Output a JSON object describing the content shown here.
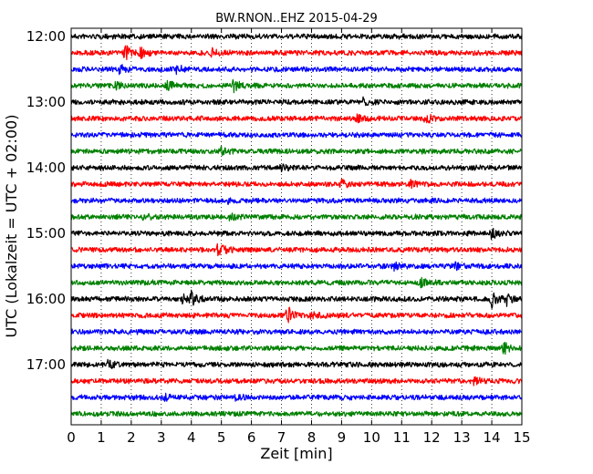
{
  "chart_data": {
    "type": "line",
    "title": "BW.RNON..EHZ 2015-04-29",
    "xlabel": "Zeit  [min]",
    "ylabel": "UTC (Lokalzeit = UTC + 02:00)",
    "xlim": [
      0,
      15
    ],
    "x_ticks": [
      "0",
      "1",
      "2",
      "3",
      "4",
      "5",
      "6",
      "7",
      "8",
      "9",
      "10",
      "11",
      "12",
      "13",
      "14",
      "15"
    ],
    "y_ticks": [
      "12:00",
      "13:00",
      "14:00",
      "15:00",
      "16:00",
      "17:00"
    ],
    "grid": {
      "x": "dotted",
      "y": "off"
    },
    "trace_colors": [
      "#000000",
      "#ff0000",
      "#0000ff",
      "#008000"
    ],
    "traces": [
      {
        "start": "12:00",
        "color": "#000000",
        "events": []
      },
      {
        "start": "12:15",
        "color": "#ff0000",
        "events": [
          {
            "t": 1.8,
            "amp": 0.55
          },
          {
            "t": 2.3,
            "amp": 0.35
          },
          {
            "t": 4.7,
            "amp": 0.3
          }
        ]
      },
      {
        "start": "12:30",
        "color": "#0000ff",
        "events": [
          {
            "t": 1.6,
            "amp": 0.3
          },
          {
            "t": 3.5,
            "amp": 0.3
          }
        ]
      },
      {
        "start": "12:45",
        "color": "#008000",
        "events": [
          {
            "t": 3.2,
            "amp": 0.5
          },
          {
            "t": 5.4,
            "amp": 0.45
          },
          {
            "t": 1.5,
            "amp": 0.25
          }
        ]
      },
      {
        "start": "13:00",
        "color": "#000000",
        "events": [
          {
            "t": 9.7,
            "amp": 0.3
          }
        ]
      },
      {
        "start": "13:15",
        "color": "#ff0000",
        "events": [
          {
            "t": 11.8,
            "amp": 0.35
          },
          {
            "t": 9.5,
            "amp": 0.25
          }
        ]
      },
      {
        "start": "13:30",
        "color": "#0000ff",
        "events": []
      },
      {
        "start": "13:45",
        "color": "#008000",
        "events": [
          {
            "t": 5.0,
            "amp": 0.25
          }
        ]
      },
      {
        "start": "14:00",
        "color": "#000000",
        "events": [
          {
            "t": 7.0,
            "amp": 0.2
          }
        ]
      },
      {
        "start": "14:15",
        "color": "#ff0000",
        "events": [
          {
            "t": 9.0,
            "amp": 0.3
          },
          {
            "t": 11.3,
            "amp": 0.25
          }
        ]
      },
      {
        "start": "14:30",
        "color": "#0000ff",
        "events": [
          {
            "t": 5.2,
            "amp": 0.2
          }
        ]
      },
      {
        "start": "14:45",
        "color": "#008000",
        "events": [
          {
            "t": 2.4,
            "amp": 0.25
          },
          {
            "t": 5.3,
            "amp": 0.25
          }
        ]
      },
      {
        "start": "15:00",
        "color": "#000000",
        "events": [
          {
            "t": 14.0,
            "amp": 0.35
          }
        ]
      },
      {
        "start": "15:15",
        "color": "#ff0000",
        "events": [
          {
            "t": 4.9,
            "amp": 0.5
          }
        ]
      },
      {
        "start": "15:30",
        "color": "#0000ff",
        "events": [
          {
            "t": 10.7,
            "amp": 0.25
          },
          {
            "t": 12.8,
            "amp": 0.2
          }
        ]
      },
      {
        "start": "15:45",
        "color": "#008000",
        "events": [
          {
            "t": 11.6,
            "amp": 0.35
          }
        ]
      },
      {
        "start": "16:00",
        "color": "#000000",
        "events": [
          {
            "t": 4.0,
            "amp": 0.5
          },
          {
            "t": 14.0,
            "amp": 0.6
          },
          {
            "t": 14.5,
            "amp": 0.4
          },
          {
            "t": 3.7,
            "amp": 0.3
          }
        ]
      },
      {
        "start": "16:15",
        "color": "#ff0000",
        "events": [
          {
            "t": 7.2,
            "amp": 0.7
          },
          {
            "t": 8.0,
            "amp": 0.3
          }
        ]
      },
      {
        "start": "16:30",
        "color": "#0000ff",
        "events": []
      },
      {
        "start": "16:45",
        "color": "#008000",
        "events": [
          {
            "t": 14.4,
            "amp": 0.4
          }
        ]
      },
      {
        "start": "17:00",
        "color": "#000000",
        "events": [
          {
            "t": 1.2,
            "amp": 0.3
          }
        ]
      },
      {
        "start": "17:15",
        "color": "#ff0000",
        "events": [
          {
            "t": 13.4,
            "amp": 0.25
          }
        ]
      },
      {
        "start": "17:30",
        "color": "#0000ff",
        "events": [
          {
            "t": 3.1,
            "amp": 0.2
          },
          {
            "t": 5.5,
            "amp": 0.2
          }
        ]
      },
      {
        "start": "17:45",
        "color": "#008000",
        "events": []
      }
    ]
  }
}
